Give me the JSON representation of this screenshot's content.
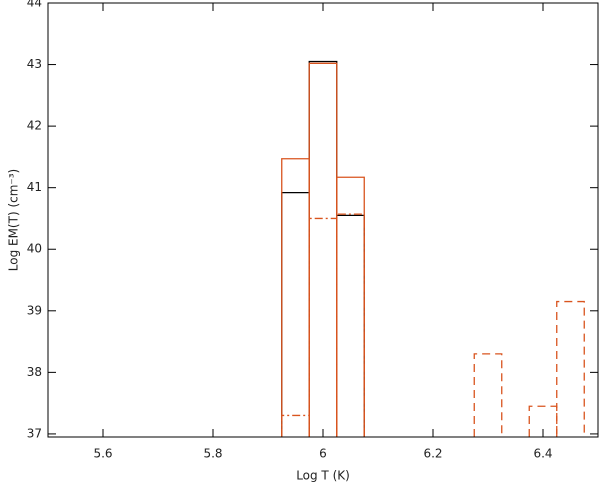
{
  "chart_data": {
    "type": "histogram",
    "x_label": "Log T (K)",
    "y_label": "Log EM(T)  (cm⁻³)",
    "xlim": [
      5.5,
      6.5
    ],
    "xticks": [
      5.6,
      5.8,
      6.0,
      6.2,
      6.4
    ],
    "ylim": [
      36.95,
      44
    ],
    "yticks": [
      37,
      38,
      39,
      40,
      41,
      42,
      43,
      44
    ],
    "bins": [
      5.925,
      5.975,
      6.025,
      6.075,
      6.125,
      6.175,
      6.225,
      6.275,
      6.325,
      6.375,
      6.425,
      6.475
    ],
    "series": [
      {
        "color": "#000000",
        "dash": "solid",
        "values": [
          40.92,
          43.05,
          40.55,
          null,
          null,
          null,
          null,
          null,
          null,
          null,
          null
        ]
      },
      {
        "color": "#d9541e",
        "dash": "solid",
        "values": [
          41.47,
          43.02,
          41.17,
          null,
          null,
          null,
          null,
          null,
          null,
          null,
          null
        ]
      },
      {
        "color": "#d9541e",
        "dash": "dashdot",
        "values": [
          37.3,
          40.5,
          40.57,
          null,
          null,
          null,
          null,
          null,
          null,
          null,
          null
        ]
      },
      {
        "color": "#d9541e",
        "dash": "dashed",
        "values": [
          null,
          null,
          null,
          null,
          null,
          null,
          null,
          38.3,
          null,
          37.45,
          39.15
        ]
      }
    ]
  }
}
